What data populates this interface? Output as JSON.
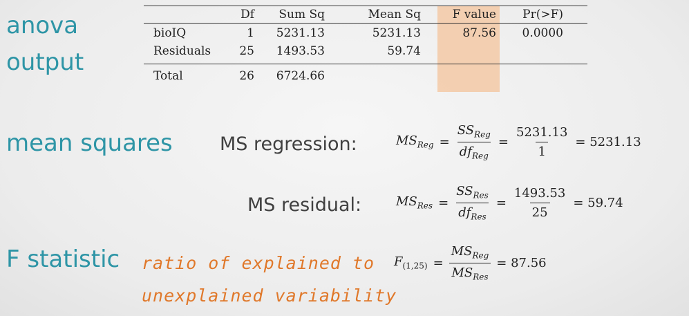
{
  "headings": {
    "anova_line1": "anova",
    "anova_line2": "output",
    "mean_squares": "mean squares",
    "f_statistic": "F statistic"
  },
  "table": {
    "columns": [
      "",
      "Df",
      "Sum Sq",
      "Mean Sq",
      "F value",
      "Pr(>F)"
    ],
    "rows": [
      {
        "source": "bioIQ",
        "df": "1",
        "sum_sq": "5231.13",
        "mean_sq": "5231.13",
        "f_value": "87.56",
        "p": "0.0000"
      },
      {
        "source": "Residuals",
        "df": "25",
        "sum_sq": "1493.53",
        "mean_sq": "59.74",
        "f_value": "",
        "p": ""
      },
      {
        "source": "Total",
        "df": "26",
        "sum_sq": "6724.66",
        "mean_sq": "",
        "f_value": "",
        "p": ""
      }
    ],
    "highlight_color": "#f3c9a6"
  },
  "labels": {
    "ms_regression": "MS regression:",
    "ms_residual": "MS residual:"
  },
  "formulas": {
    "reg": {
      "lhs": "MS",
      "lhs_sub": "Reg",
      "num": "SS",
      "num_sub": "Reg",
      "den": "df",
      "den_sub": "Reg",
      "num_val": "5231.13",
      "den_val": "1",
      "result": "= 5231.13"
    },
    "res": {
      "lhs": "MS",
      "lhs_sub": "Res",
      "num": "SS",
      "num_sub": "Res",
      "den": "df",
      "den_sub": "Res",
      "num_val": "1493.53",
      "den_val": "25",
      "result": "= 59.74"
    },
    "f": {
      "lhs": "F",
      "lhs_sub": "(1,25)",
      "num": "MS",
      "num_sub": "Reg",
      "den": "MS",
      "den_sub": "Res",
      "result": "= 87.56"
    }
  },
  "note": {
    "line1": "ratio of explained to",
    "line2": "unexplained variability"
  },
  "colors": {
    "heading": "#2e95a6",
    "note": "#e0782a"
  }
}
